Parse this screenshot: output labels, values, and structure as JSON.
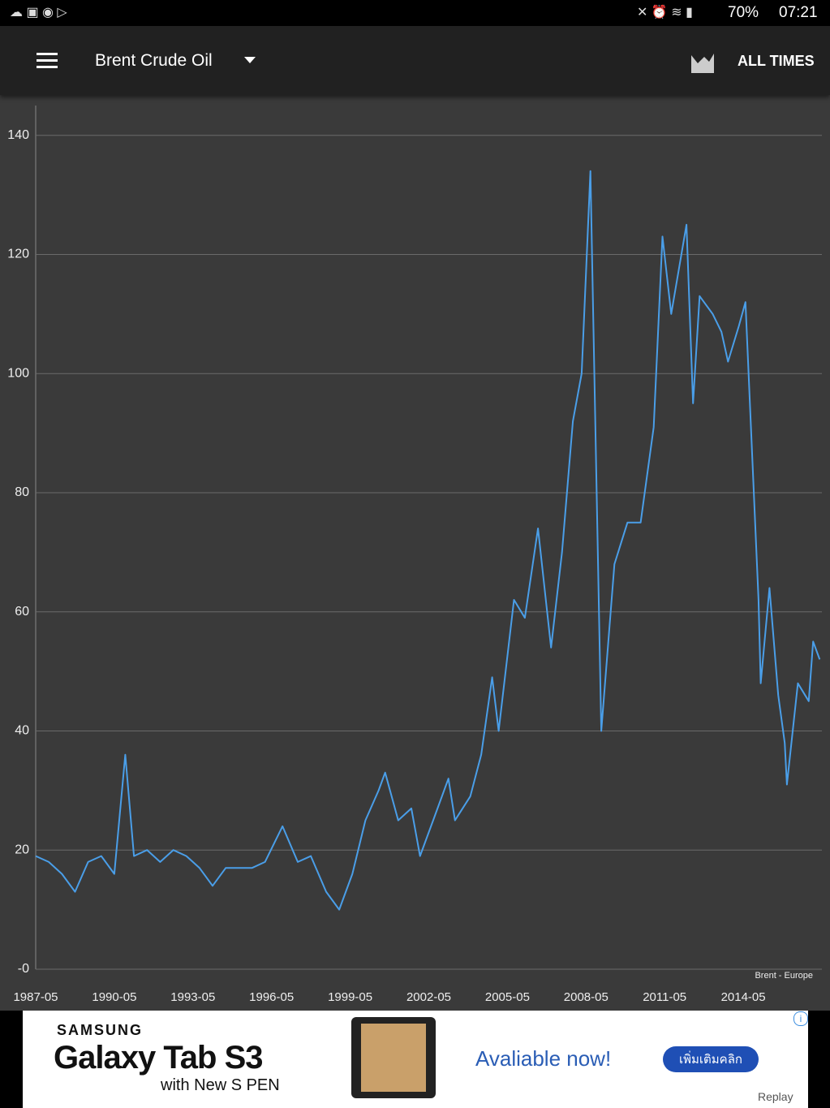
{
  "status_bar": {
    "battery": "70%",
    "time": "07:21"
  },
  "app_bar": {
    "title": "Brent Crude Oil",
    "action": "ALL TIMES"
  },
  "chart_data": {
    "type": "line",
    "x": [
      "1987-05",
      "1987-11",
      "1988-05",
      "1988-11",
      "1989-05",
      "1989-11",
      "1990-05",
      "1990-10",
      "1991-02",
      "1991-08",
      "1992-02",
      "1992-08",
      "1993-02",
      "1993-08",
      "1994-02",
      "1994-08",
      "1995-02",
      "1995-08",
      "1996-02",
      "1996-10",
      "1997-05",
      "1997-11",
      "1998-06",
      "1998-12",
      "1999-06",
      "1999-12",
      "2000-06",
      "2000-09",
      "2001-03",
      "2001-09",
      "2002-01",
      "2002-07",
      "2003-02",
      "2003-05",
      "2003-12",
      "2004-05",
      "2004-10",
      "2005-01",
      "2005-08",
      "2006-01",
      "2006-07",
      "2007-01",
      "2007-06",
      "2007-11",
      "2008-03",
      "2008-07",
      "2008-12",
      "2009-06",
      "2009-12",
      "2010-06",
      "2010-12",
      "2011-04",
      "2011-08",
      "2012-03",
      "2012-06",
      "2012-09",
      "2013-03",
      "2013-07",
      "2013-10",
      "2014-03",
      "2014-06",
      "2014-12",
      "2015-01",
      "2015-05",
      "2015-09",
      "2015-12",
      "2016-01",
      "2016-06",
      "2016-11",
      "2017-01",
      "2017-04"
    ],
    "series": [
      {
        "name": "Brent - Europe",
        "color": "#4a9ee8",
        "values": [
          19,
          18,
          16,
          13,
          18,
          19,
          16,
          36,
          19,
          20,
          18,
          20,
          19,
          17,
          14,
          17,
          17,
          17,
          18,
          24,
          18,
          19,
          13,
          10,
          16,
          25,
          30,
          33,
          25,
          27,
          19,
          25,
          32,
          25,
          29,
          36,
          49,
          40,
          62,
          59,
          74,
          54,
          70,
          92,
          100,
          134,
          40,
          68,
          75,
          75,
          91,
          123,
          110,
          125,
          95,
          113,
          110,
          107,
          102,
          108,
          112,
          62,
          48,
          64,
          46,
          38,
          31,
          48,
          45,
          55,
          52
        ]
      }
    ],
    "xlim": [
      "1987-05",
      "2017-05"
    ],
    "xticks": [
      "1987-05",
      "1990-05",
      "1993-05",
      "1996-05",
      "1999-05",
      "2002-05",
      "2005-05",
      "2008-05",
      "2011-05",
      "2014-05"
    ],
    "ylim": [
      0,
      145
    ],
    "yticks": [
      {
        "value": 0,
        "label": "-0"
      },
      20,
      40,
      60,
      80,
      100,
      120,
      140
    ],
    "grid": true
  },
  "ad": {
    "brand": "SAMSUNG",
    "product": "Galaxy Tab S3",
    "tagline": "with New S PEN",
    "cta": "Avaliable now!",
    "button": "เพิ่มเติมคลิก",
    "footer": "Replay"
  }
}
